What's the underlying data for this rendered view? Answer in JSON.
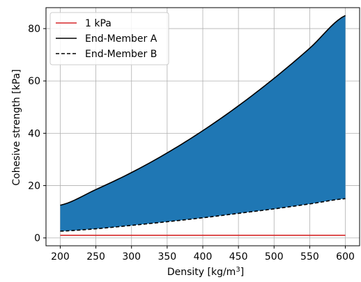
{
  "chart_data": {
    "type": "area",
    "xlabel_main": "Density [kg/m",
    "xlabel_sup": "3",
    "xlabel_end": "]",
    "ylabel": "Cohesive strength [kPa]",
    "xlim": [
      180,
      620
    ],
    "ylim": [
      -3,
      88
    ],
    "x_ticks": [
      200,
      250,
      300,
      350,
      400,
      450,
      500,
      550,
      600
    ],
    "y_ticks": [
      0,
      20,
      40,
      60,
      80
    ],
    "grid": true,
    "legend_position": "upper-left",
    "fill_color": "#1f77b4",
    "x": [
      200,
      250,
      300,
      350,
      400,
      450,
      500,
      550,
      600
    ],
    "series": [
      {
        "name": "1 kPa",
        "style": "solid",
        "color": "#d62728",
        "values": [
          1,
          1,
          1,
          1,
          1,
          1,
          1,
          1,
          1
        ]
      },
      {
        "name": "End-Member A",
        "style": "solid",
        "color": "#000000",
        "values": [
          12.5,
          18.5,
          25.0,
          32.5,
          41.0,
          50.5,
          61.0,
          72.5,
          85.0
        ]
      },
      {
        "name": "End-Member B",
        "style": "dashed",
        "color": "#000000",
        "values": [
          2.6,
          3.5,
          4.8,
          6.2,
          7.7,
          9.4,
          11.1,
          13.0,
          15.0
        ]
      }
    ]
  }
}
